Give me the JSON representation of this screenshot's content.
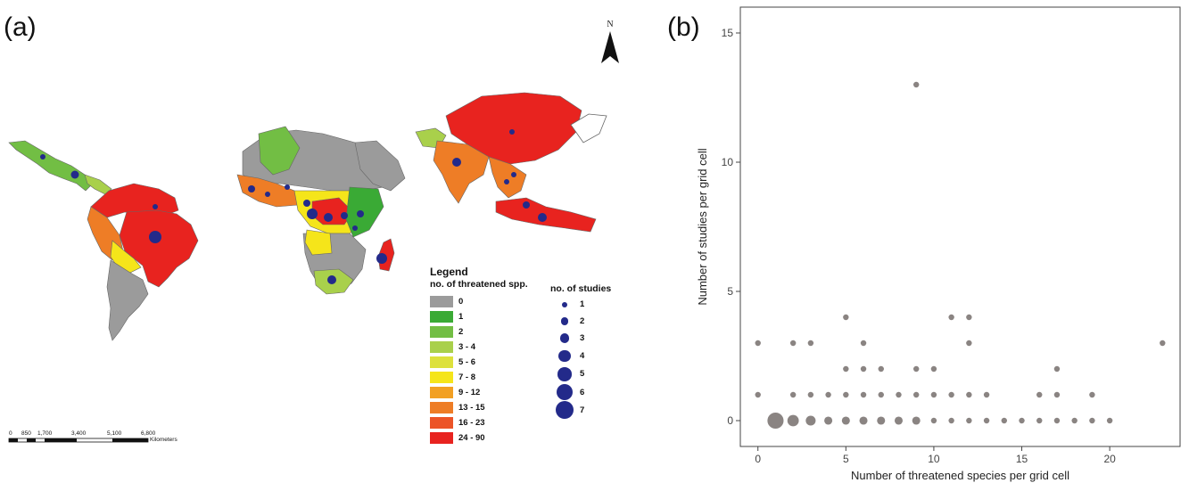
{
  "panel_a": {
    "label": "(a)",
    "north": "N",
    "legend": {
      "heading": "Legend",
      "species_title": "no. of threatened spp.",
      "species_classes": [
        {
          "label": "0",
          "color": "#9b9b9b"
        },
        {
          "label": "1",
          "color": "#3aaa35"
        },
        {
          "label": "2",
          "color": "#72be44"
        },
        {
          "label": "3 - 4",
          "color": "#a9d04b"
        },
        {
          "label": "5 - 6",
          "color": "#dde13c"
        },
        {
          "label": "7 - 8",
          "color": "#f5e51a"
        },
        {
          "label": "9 - 12",
          "color": "#f2a023"
        },
        {
          "label": "13 - 15",
          "color": "#ee7d26"
        },
        {
          "label": "16 - 23",
          "color": "#ec5427"
        },
        {
          "label": "24 - 90",
          "color": "#e8231f"
        }
      ],
      "studies_title": "no. of studies",
      "studies_classes": [
        "1",
        "2",
        "3",
        "4",
        "5",
        "6",
        "7"
      ],
      "dot_color": "#232a8a"
    },
    "scalebar": {
      "ticks": [
        "0",
        "850",
        "1,700",
        "3,400",
        "5,100",
        "6,800"
      ],
      "unit": "Kilometers"
    }
  },
  "panel_b": {
    "label": "(b)"
  },
  "chart_data": {
    "type": "scatter",
    "title": "",
    "xlabel": "Number of threatened species per grid cell",
    "ylabel": "Number of studies per grid cell",
    "xlim": [
      -1,
      24
    ],
    "ylim": [
      -1,
      16
    ],
    "xticks": [
      0,
      5,
      10,
      15,
      20
    ],
    "yticks": [
      0,
      5,
      10,
      15
    ],
    "grid": false,
    "point_color": "#8a8482",
    "size_note": "point size proportional to number of grid cells",
    "points": [
      {
        "x": 0,
        "y": 3,
        "n": 1
      },
      {
        "x": 0,
        "y": 1,
        "n": 1
      },
      {
        "x": 1,
        "y": 0,
        "n": 8
      },
      {
        "x": 2,
        "y": 3,
        "n": 1
      },
      {
        "x": 2,
        "y": 1,
        "n": 1
      },
      {
        "x": 2,
        "y": 0,
        "n": 4
      },
      {
        "x": 3,
        "y": 3,
        "n": 1
      },
      {
        "x": 3,
        "y": 1,
        "n": 1
      },
      {
        "x": 3,
        "y": 0,
        "n": 3
      },
      {
        "x": 4,
        "y": 1,
        "n": 1
      },
      {
        "x": 4,
        "y": 0,
        "n": 2
      },
      {
        "x": 5,
        "y": 4,
        "n": 1
      },
      {
        "x": 5,
        "y": 2,
        "n": 1
      },
      {
        "x": 5,
        "y": 1,
        "n": 1
      },
      {
        "x": 5,
        "y": 0,
        "n": 2
      },
      {
        "x": 6,
        "y": 3,
        "n": 1
      },
      {
        "x": 6,
        "y": 2,
        "n": 1
      },
      {
        "x": 6,
        "y": 1,
        "n": 1
      },
      {
        "x": 6,
        "y": 0,
        "n": 2
      },
      {
        "x": 7,
        "y": 2,
        "n": 1
      },
      {
        "x": 7,
        "y": 1,
        "n": 1
      },
      {
        "x": 7,
        "y": 0,
        "n": 2
      },
      {
        "x": 8,
        "y": 1,
        "n": 1
      },
      {
        "x": 8,
        "y": 0,
        "n": 2
      },
      {
        "x": 9,
        "y": 13,
        "n": 1
      },
      {
        "x": 9,
        "y": 2,
        "n": 1
      },
      {
        "x": 9,
        "y": 1,
        "n": 1
      },
      {
        "x": 9,
        "y": 0,
        "n": 2
      },
      {
        "x": 10,
        "y": 2,
        "n": 1
      },
      {
        "x": 10,
        "y": 1,
        "n": 1
      },
      {
        "x": 10,
        "y": 0,
        "n": 1
      },
      {
        "x": 11,
        "y": 4,
        "n": 1
      },
      {
        "x": 11,
        "y": 1,
        "n": 1
      },
      {
        "x": 11,
        "y": 0,
        "n": 1
      },
      {
        "x": 12,
        "y": 4,
        "n": 1
      },
      {
        "x": 12,
        "y": 3,
        "n": 1
      },
      {
        "x": 12,
        "y": 1,
        "n": 1
      },
      {
        "x": 12,
        "y": 0,
        "n": 1
      },
      {
        "x": 13,
        "y": 1,
        "n": 1
      },
      {
        "x": 13,
        "y": 0,
        "n": 1
      },
      {
        "x": 14,
        "y": 0,
        "n": 1
      },
      {
        "x": 15,
        "y": 0,
        "n": 1
      },
      {
        "x": 16,
        "y": 1,
        "n": 1
      },
      {
        "x": 16,
        "y": 0,
        "n": 1
      },
      {
        "x": 17,
        "y": 2,
        "n": 1
      },
      {
        "x": 17,
        "y": 1,
        "n": 1
      },
      {
        "x": 17,
        "y": 0,
        "n": 1
      },
      {
        "x": 18,
        "y": 0,
        "n": 1
      },
      {
        "x": 19,
        "y": 1,
        "n": 1
      },
      {
        "x": 19,
        "y": 0,
        "n": 1
      },
      {
        "x": 20,
        "y": 0,
        "n": 1
      },
      {
        "x": 23,
        "y": 3,
        "n": 1
      }
    ]
  }
}
